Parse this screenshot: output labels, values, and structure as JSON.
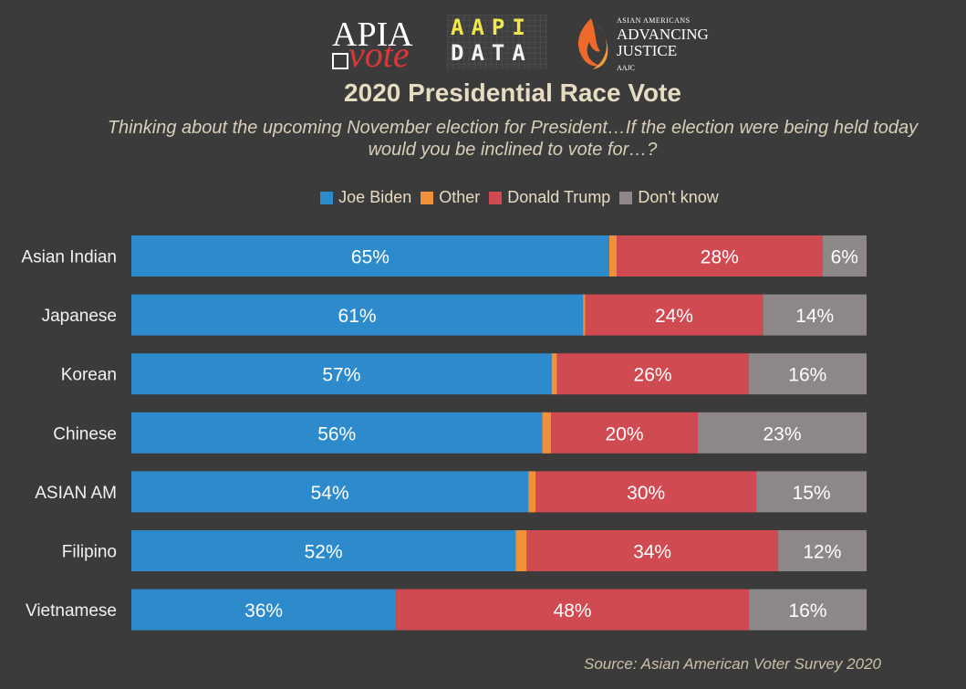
{
  "logos": {
    "apia_top": "APIA",
    "apia_bottom": "vote",
    "aapi_line1": "AAPI",
    "aapi_line2": "DATA",
    "aajc_small": "ASIAN AMERICANS",
    "aajc_line1": "ADVANCING",
    "aajc_line2": "JUSTICE",
    "aajc_abbr": "AAJC"
  },
  "colors": {
    "background": "#3b3b3b",
    "biden": "#2e8bcb",
    "other": "#f0913a",
    "trump": "#d04a52",
    "dont_know": "#8d8787"
  },
  "source": "Source: Asian American Voter Survey 2020",
  "chart_data": {
    "type": "bar",
    "orientation": "horizontal",
    "stacked": true,
    "percent": true,
    "title": "2020 Presidential Race Vote",
    "subtitle": "Thinking about the upcoming November election for President…If the election were being held today would you be inclined to vote for…?",
    "legend_position": "top-center",
    "categories": [
      "Asian Indian",
      "Japanese",
      "Korean",
      "Chinese",
      "ASIAN AM",
      "Filipino",
      "Vietnamese"
    ],
    "series": [
      {
        "name": "Joe Biden",
        "color": "#2e8bcb",
        "values": [
          65,
          61,
          57,
          56,
          54,
          52,
          36
        ],
        "labels": [
          "65%",
          "61%",
          "57%",
          "56%",
          "54%",
          "52%",
          "36%"
        ]
      },
      {
        "name": "Other",
        "color": "#f0913a",
        "values": [
          1,
          0.3,
          0.7,
          1.2,
          1,
          1.5,
          0
        ],
        "labels": [
          "",
          "",
          "",
          "",
          "",
          "",
          ""
        ]
      },
      {
        "name": "Donald Trump",
        "color": "#d04a52",
        "values": [
          28,
          24,
          26,
          20,
          30,
          34,
          48
        ],
        "labels": [
          "28%",
          "24%",
          "26%",
          "20%",
          "30%",
          "34%",
          "48%"
        ]
      },
      {
        "name": "Don't know",
        "color": "#8d8787",
        "values": [
          6,
          14,
          16,
          23,
          15,
          12,
          16
        ],
        "labels": [
          "6%",
          "14%",
          "16%",
          "23%",
          "15%",
          "12%",
          "16%"
        ]
      }
    ],
    "xlim": [
      0,
      100
    ]
  }
}
